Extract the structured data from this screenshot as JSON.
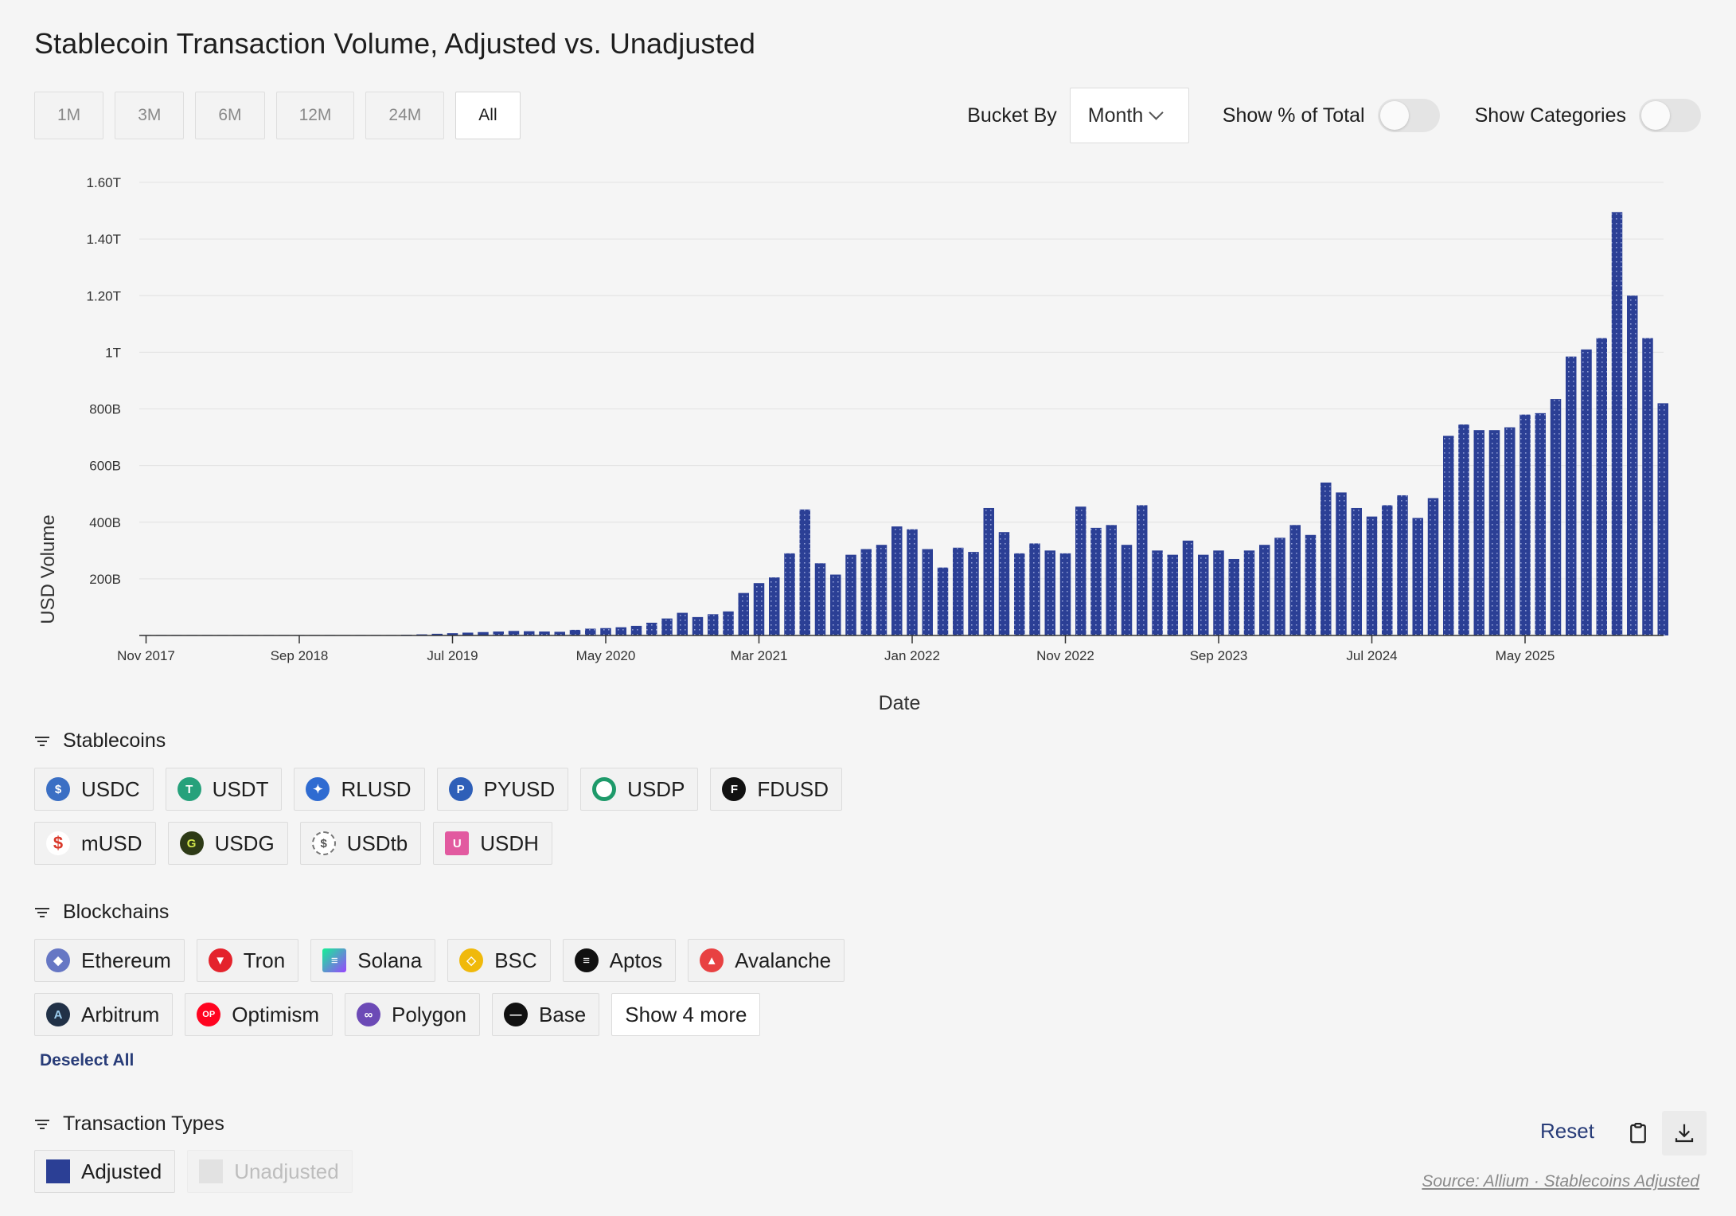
{
  "title": "Stablecoin Transaction Volume, Adjusted vs. Unadjusted",
  "range_tabs": [
    "1M",
    "3M",
    "6M",
    "12M",
    "24M",
    "All"
  ],
  "active_range": "All",
  "controls": {
    "bucket_label": "Bucket By",
    "bucket_value": "Month",
    "show_pct_label": "Show % of Total",
    "show_categories_label": "Show Categories"
  },
  "colors": {
    "bar": "#2b3f95",
    "accent": "#283c78"
  },
  "chart_data": {
    "type": "bar",
    "xlabel": "Date",
    "ylabel": "USD Volume",
    "ylim": [
      0,
      1600000000000
    ],
    "yticks": [
      {
        "value": 200000000000,
        "label": "200B"
      },
      {
        "value": 400000000000,
        "label": "400B"
      },
      {
        "value": 600000000000,
        "label": "600B"
      },
      {
        "value": 800000000000,
        "label": "800B"
      },
      {
        "value": 1000000000000,
        "label": "1T"
      },
      {
        "value": 1200000000000,
        "label": "1.20T"
      },
      {
        "value": 1400000000000,
        "label": "1.40T"
      },
      {
        "value": 1600000000000,
        "label": "1.60T"
      }
    ],
    "xticks": [
      {
        "date": "2017-11",
        "label": "Nov 2017"
      },
      {
        "date": "2018-09",
        "label": "Sep 2018"
      },
      {
        "date": "2019-07",
        "label": "Jul 2019"
      },
      {
        "date": "2020-05",
        "label": "May 2020"
      },
      {
        "date": "2021-03",
        "label": "Mar 2021"
      },
      {
        "date": "2022-01",
        "label": "Jan 2022"
      },
      {
        "date": "2022-11",
        "label": "Nov 2022"
      },
      {
        "date": "2023-09",
        "label": "Sep 2023"
      },
      {
        "date": "2024-07",
        "label": "Jul 2024"
      },
      {
        "date": "2025-05",
        "label": "May 2025"
      }
    ],
    "grid": true,
    "series": [
      {
        "name": "Adjusted",
        "x": [
          "2017-11",
          "2017-12",
          "2018-01",
          "2018-02",
          "2018-03",
          "2018-04",
          "2018-05",
          "2018-06",
          "2018-07",
          "2018-08",
          "2018-09",
          "2018-10",
          "2018-11",
          "2018-12",
          "2019-01",
          "2019-02",
          "2019-03",
          "2019-04",
          "2019-05",
          "2019-06",
          "2019-07",
          "2019-08",
          "2019-09",
          "2019-10",
          "2019-11",
          "2019-12",
          "2020-01",
          "2020-02",
          "2020-03",
          "2020-04",
          "2020-05",
          "2020-06",
          "2020-07",
          "2020-08",
          "2020-09",
          "2020-10",
          "2020-11",
          "2020-12",
          "2021-01",
          "2021-02",
          "2021-03",
          "2021-04",
          "2021-05",
          "2021-06",
          "2021-07",
          "2021-08",
          "2021-09",
          "2021-10",
          "2021-11",
          "2021-12",
          "2022-01",
          "2022-02",
          "2022-03",
          "2022-04",
          "2022-05",
          "2022-06",
          "2022-07",
          "2022-08",
          "2022-09",
          "2022-10",
          "2022-11",
          "2022-12",
          "2023-01",
          "2023-02",
          "2023-03",
          "2023-04",
          "2023-05",
          "2023-06",
          "2023-07",
          "2023-08",
          "2023-09",
          "2023-10",
          "2023-11",
          "2023-12",
          "2024-01",
          "2024-02",
          "2024-03",
          "2024-04",
          "2024-05",
          "2024-06",
          "2024-07",
          "2024-08",
          "2024-09",
          "2024-10",
          "2024-11",
          "2024-12",
          "2025-01",
          "2025-02",
          "2025-03",
          "2025-04",
          "2025-05",
          "2025-06",
          "2025-07",
          "2025-08",
          "2025-09",
          "2025-10",
          "2025-11",
          "2025-12",
          "2026-01",
          "2026-02"
        ],
        "values": [
          0.1,
          0.1,
          0.1,
          0.1,
          0.1,
          0.2,
          0.3,
          0.3,
          0.3,
          0.4,
          0.5,
          0.5,
          0.6,
          0.7,
          0.8,
          1.0,
          1.5,
          2.5,
          4,
          6,
          8,
          10,
          12,
          14,
          16,
          15,
          14,
          13,
          20,
          24,
          26,
          29,
          34,
          45,
          60,
          80,
          65,
          75,
          85,
          150,
          185,
          205,
          290,
          445,
          255,
          215,
          285,
          305,
          320,
          385,
          375,
          305,
          240,
          310,
          295,
          450,
          365,
          290,
          325,
          300,
          290,
          455,
          380,
          390,
          320,
          460,
          300,
          285,
          335,
          285,
          300,
          270,
          300,
          320,
          345,
          390,
          355,
          540,
          505,
          450,
          420,
          460,
          495,
          415,
          485,
          705,
          745,
          725,
          725,
          735,
          780,
          785,
          835,
          985,
          1010,
          1050,
          1495,
          1200,
          1050,
          820
        ]
      },
      {
        "name": "Unadjusted",
        "x": [],
        "values": []
      }
    ]
  },
  "stablecoins": {
    "header": "Stablecoins",
    "items": [
      {
        "label": "USDC",
        "icon": "usdc-icon",
        "color": "#3b6fc4"
      },
      {
        "label": "USDT",
        "icon": "usdt-icon",
        "color": "#26a17b"
      },
      {
        "label": "RLUSD",
        "icon": "rlusd-icon",
        "color": "#2f6bd1"
      },
      {
        "label": "PYUSD",
        "icon": "pyusd-icon",
        "color": "#2e5fb8"
      },
      {
        "label": "USDP",
        "icon": "usdp-icon",
        "color": "#1e9a6a"
      },
      {
        "label": "FDUSD",
        "icon": "fdusd-icon",
        "color": "#111111"
      },
      {
        "label": "mUSD",
        "icon": "musd-icon",
        "color": "#d9382a"
      },
      {
        "label": "USDG",
        "icon": "usdg-icon",
        "color": "#2d3a16"
      },
      {
        "label": "USDtb",
        "icon": "usdtb-icon",
        "color": "#e8e8e8"
      },
      {
        "label": "USDH",
        "icon": "usdh-icon",
        "color": "#e25aa0"
      }
    ]
  },
  "blockchains": {
    "header": "Blockchains",
    "items": [
      {
        "label": "Ethereum",
        "icon": "ethereum-icon",
        "color": "#6677c4"
      },
      {
        "label": "Tron",
        "icon": "tron-icon",
        "color": "#e4232c"
      },
      {
        "label": "Solana",
        "icon": "solana-icon",
        "color": "#8b64e6"
      },
      {
        "label": "BSC",
        "icon": "bsc-icon",
        "color": "#f0b90b"
      },
      {
        "label": "Aptos",
        "icon": "aptos-icon",
        "color": "#111111"
      },
      {
        "label": "Avalanche",
        "icon": "avalanche-icon",
        "color": "#e84142"
      },
      {
        "label": "Arbitrum",
        "icon": "arbitrum-icon",
        "color": "#213147"
      },
      {
        "label": "Optimism",
        "icon": "optimism-icon",
        "color": "#ff0420"
      },
      {
        "label": "Polygon",
        "icon": "polygon-icon",
        "color": "#6c4ab6"
      },
      {
        "label": "Base",
        "icon": "base-icon",
        "color": "#111111"
      }
    ],
    "show_more_label": "Show 4 more",
    "deselect_label": "Deselect All"
  },
  "transaction_types": {
    "header": "Transaction Types",
    "items": [
      {
        "label": "Adjusted",
        "color": "#2b3f95",
        "active": true
      },
      {
        "label": "Unadjusted",
        "color": "#e2e2e2",
        "active": false
      }
    ]
  },
  "footer": {
    "reset_label": "Reset",
    "source": "Source: Allium · Stablecoins Adjusted"
  }
}
